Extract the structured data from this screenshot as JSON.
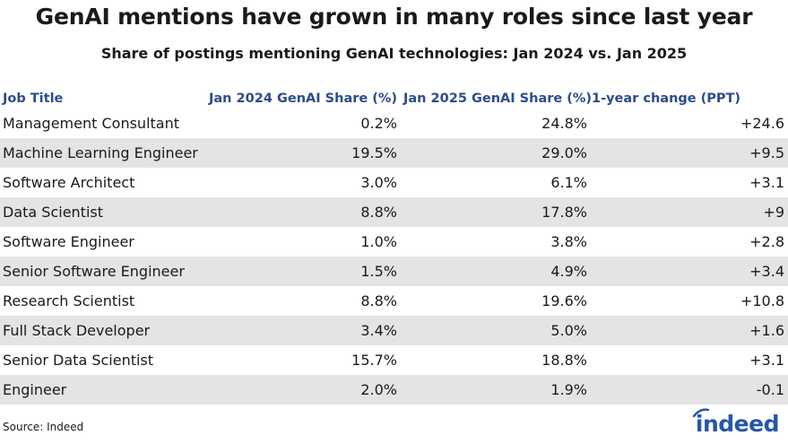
{
  "title": "GenAI mentions have grown in many roles since last year",
  "subtitle": "Share of postings mentioning GenAI technologies: Jan 2024 vs. Jan 2025",
  "header": {
    "col0": "Job Title",
    "col1": "Jan 2024 GenAI Share (%)",
    "col2": "Jan 2025 GenAI Share (%)",
    "col3": "1-year change (PPT)"
  },
  "rows": [
    {
      "title": "Management Consultant",
      "jan2024": "0.2%",
      "jan2025": "24.8%",
      "change": "+24.6"
    },
    {
      "title": "Machine Learning Engineer",
      "jan2024": "19.5%",
      "jan2025": "29.0%",
      "change": "+9.5"
    },
    {
      "title": "Software Architect",
      "jan2024": "3.0%",
      "jan2025": "6.1%",
      "change": "+3.1"
    },
    {
      "title": "Data Scientist",
      "jan2024": "8.8%",
      "jan2025": "17.8%",
      "change": "+9"
    },
    {
      "title": "Software Engineer",
      "jan2024": "1.0%",
      "jan2025": "3.8%",
      "change": "+2.8"
    },
    {
      "title": "Senior Software Engineer",
      "jan2024": "1.5%",
      "jan2025": "4.9%",
      "change": "+3.4"
    },
    {
      "title": "Research Scientist",
      "jan2024": "8.8%",
      "jan2025": "19.6%",
      "change": "+10.8"
    },
    {
      "title": "Full Stack Developer",
      "jan2024": "3.4%",
      "jan2025": "5.0%",
      "change": "+1.6"
    },
    {
      "title": "Senior Data Scientist",
      "jan2024": "15.7%",
      "jan2025": "18.8%",
      "change": "+3.1"
    },
    {
      "title": "Engineer",
      "jan2024": "2.0%",
      "jan2025": "1.9%",
      "change": "-0.1"
    }
  ],
  "source": "Source: Indeed",
  "logo_text": "indeed",
  "colors": {
    "header_text": "#2b4c8c",
    "row_shade": "#e4e4e4",
    "logo": "#2557a7"
  },
  "chart_data": {
    "type": "table",
    "title": "GenAI mentions have grown in many roles since last year",
    "subtitle": "Share of postings mentioning GenAI technologies: Jan 2024 vs. Jan 2025",
    "columns": [
      "Job Title",
      "Jan 2024 GenAI Share (%)",
      "Jan 2025 GenAI Share (%)",
      "1-year change (PPT)"
    ],
    "categories": [
      "Management Consultant",
      "Machine Learning Engineer",
      "Software Architect",
      "Data Scientist",
      "Software Engineer",
      "Senior Software Engineer",
      "Research Scientist",
      "Full Stack Developer",
      "Senior Data Scientist",
      "Engineer"
    ],
    "series": [
      {
        "name": "Jan 2024 GenAI Share (%)",
        "values": [
          0.2,
          19.5,
          3.0,
          8.8,
          1.0,
          1.5,
          8.8,
          3.4,
          15.7,
          2.0
        ]
      },
      {
        "name": "Jan 2025 GenAI Share (%)",
        "values": [
          24.8,
          29.0,
          6.1,
          17.8,
          3.8,
          4.9,
          19.6,
          5.0,
          18.8,
          1.9
        ]
      },
      {
        "name": "1-year change (PPT)",
        "values": [
          24.6,
          9.5,
          3.1,
          9,
          2.8,
          3.4,
          10.8,
          1.6,
          3.1,
          -0.1
        ]
      }
    ]
  }
}
